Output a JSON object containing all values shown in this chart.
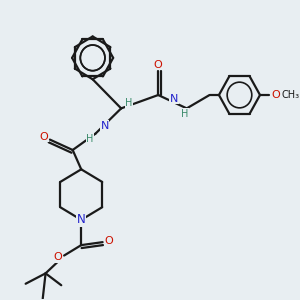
{
  "bg_color": "#e8eef2",
  "bond_color": "#1a1a1a",
  "N_color": "#2222cc",
  "O_color": "#cc1100",
  "H_color": "#3a8a6a",
  "line_width": 1.6,
  "figsize": [
    3.0,
    3.0
  ],
  "dpi": 100,
  "xlim": [
    0,
    10
  ],
  "ylim": [
    0,
    10
  ]
}
